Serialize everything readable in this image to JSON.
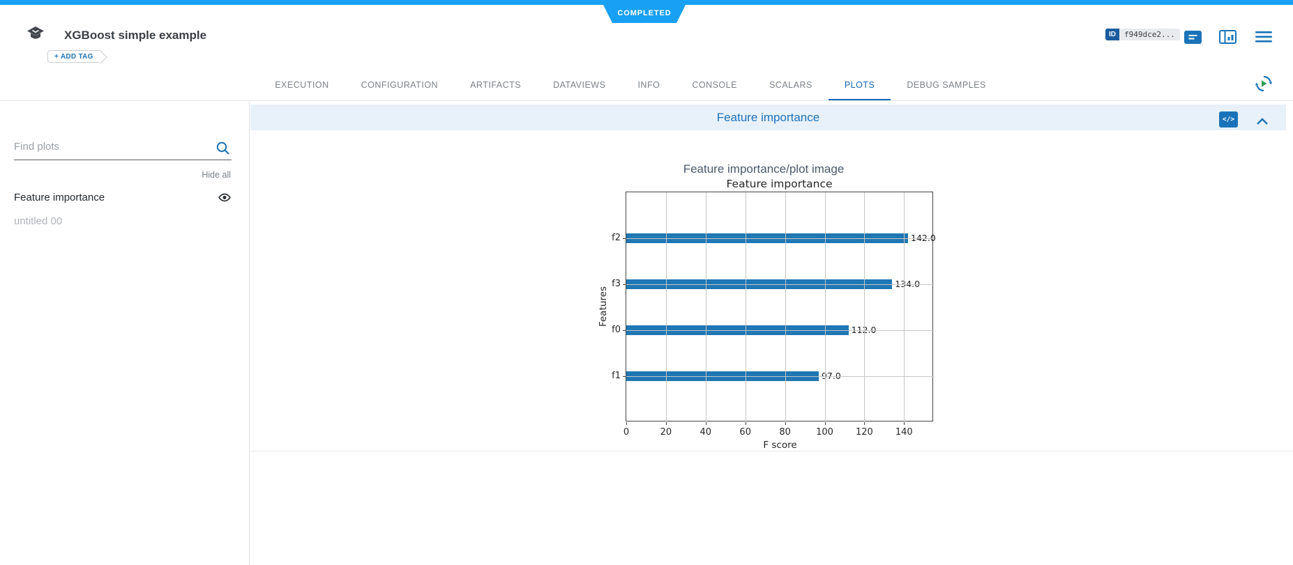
{
  "topbar": {
    "color": "#18a0f4"
  },
  "status_badge": {
    "label": "COMPLETED"
  },
  "header": {
    "title": "XGBoost simple example",
    "add_tag_label": "+ ADD TAG",
    "id_label": "ID",
    "id_value": "f949dce2...",
    "icons": {
      "logo": "experiment-cap-icon",
      "comment": "task-comment-icon",
      "panel": "details-panel-icon",
      "menu": "hamburger-menu-icon"
    }
  },
  "tabs": {
    "items": [
      "EXECUTION",
      "CONFIGURATION",
      "ARTIFACTS",
      "DATAVIEWS",
      "INFO",
      "CONSOLE",
      "SCALARS",
      "PLOTS",
      "DEBUG SAMPLES"
    ],
    "active": "PLOTS",
    "refresh_icon": "auto-refresh-circular-arrow-play-icon"
  },
  "sidebar": {
    "search_placeholder": "Find plots",
    "search_icon": "magnifier-icon",
    "hide_all_label": "Hide all",
    "items": [
      {
        "label": "Feature importance",
        "muted": false,
        "show_eye": true
      },
      {
        "label": "untitled 00",
        "muted": true,
        "show_eye": false
      }
    ]
  },
  "plot_panel": {
    "title": "Feature importance",
    "code_icon_glyph": "</>",
    "collapse_icon": "chevron-up-icon",
    "accent_color": "#1a73b8",
    "header_bg": "#e8f1fa"
  },
  "chart_data": {
    "type": "bar",
    "orientation": "horizontal",
    "figure_title": "Feature importance/plot image",
    "title": "Feature importance",
    "categories": [
      "f2",
      "f3",
      "f0",
      "f1"
    ],
    "values": [
      142,
      134,
      112,
      97
    ],
    "value_labels": [
      "142.0",
      "134.0",
      "112.0",
      "97.0"
    ],
    "xlabel": "F score",
    "ylabel": "Features",
    "xlim": [
      0,
      155
    ],
    "xticks": [
      0,
      20,
      40,
      60,
      80,
      100,
      120,
      140
    ],
    "bar_color": "#1f77b4",
    "grid": true,
    "legend_position": "none"
  }
}
